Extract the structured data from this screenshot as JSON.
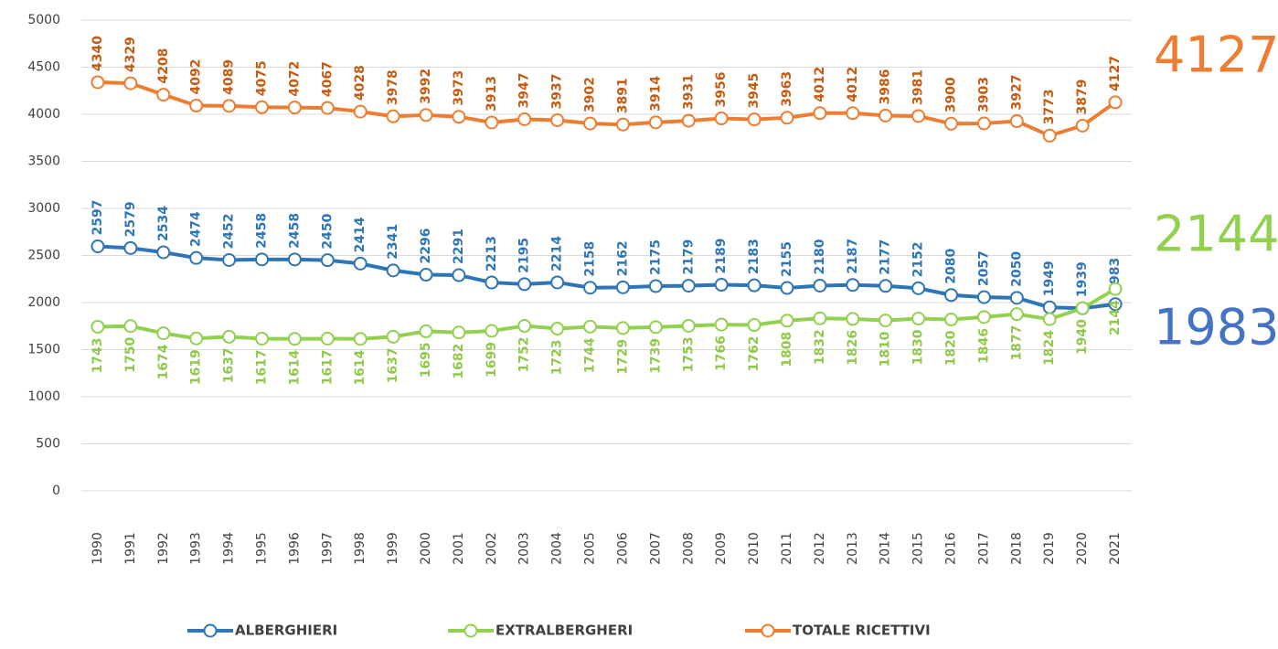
{
  "chart_data": {
    "type": "line",
    "categories": [
      "1990",
      "1991",
      "1992",
      "1993",
      "1994",
      "1995",
      "1996",
      "1997",
      "1998",
      "1999",
      "2000",
      "2001",
      "2002",
      "2003",
      "2004",
      "2005",
      "2006",
      "2007",
      "2008",
      "2009",
      "2010",
      "2011",
      "2012",
      "2013",
      "2014",
      "2015",
      "2016",
      "2017",
      "2018",
      "2019",
      "2020",
      "2021"
    ],
    "series": [
      {
        "name": "ALBERGHIERI",
        "color": "#2e75b6",
        "label_color": "#2e75b6",
        "label_position": "above",
        "values": [
          2597,
          2579,
          2534,
          2474,
          2452,
          2458,
          2458,
          2450,
          2414,
          2341,
          2296,
          2291,
          2213,
          2195,
          2214,
          2158,
          2162,
          2175,
          2179,
          2189,
          2183,
          2155,
          2180,
          2187,
          2177,
          2152,
          2080,
          2057,
          2050,
          1949,
          1939,
          1983
        ]
      },
      {
        "name": "EXTRALBERGHERI",
        "color": "#92d050",
        "label_color": "#8fc94c",
        "label_position": "below",
        "values": [
          1743,
          1750,
          1674,
          1619,
          1637,
          1617,
          1614,
          1617,
          1614,
          1637,
          1695,
          1682,
          1699,
          1752,
          1723,
          1744,
          1729,
          1739,
          1753,
          1766,
          1762,
          1808,
          1832,
          1826,
          1810,
          1830,
          1820,
          1846,
          1877,
          1824,
          1940,
          2144
        ]
      },
      {
        "name": "TOTALE RICETTIVI",
        "color": "#ed7d31",
        "label_color": "#c55a11",
        "label_position": "above",
        "values": [
          4340,
          4329,
          4208,
          4092,
          4089,
          4075,
          4072,
          4067,
          4028,
          3978,
          3992,
          3973,
          3913,
          3947,
          3937,
          3902,
          3891,
          3914,
          3931,
          3956,
          3945,
          3963,
          4012,
          4012,
          3986,
          3981,
          3900,
          3903,
          3927,
          3773,
          3879,
          4127
        ]
      }
    ],
    "ylim": [
      0,
      5000
    ],
    "yticks": [
      0,
      500,
      1000,
      1500,
      2000,
      2500,
      3000,
      3500,
      4000,
      4500,
      5000
    ],
    "grid": true,
    "legend": "bottom"
  }
}
